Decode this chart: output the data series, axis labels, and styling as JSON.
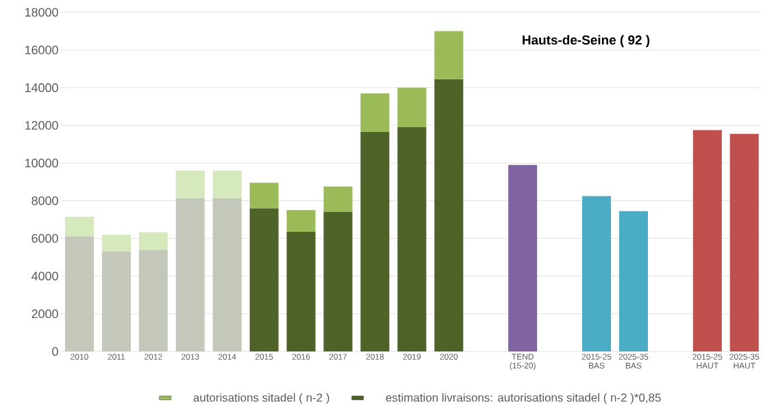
{
  "chart_data": {
    "type": "bar",
    "stacked": true,
    "title": "Hauts-de-Seine ( 92 )",
    "categories": [
      "2010",
      "2011",
      "2012",
      "2013",
      "2014",
      "2015",
      "2016",
      "2017",
      "2018",
      "2019",
      "2020",
      null,
      "TEND (15-20)",
      null,
      "2015-25 BAS",
      "2025-35 BAS",
      null,
      "2015-25 HAUT",
      "2025-35 HAUT"
    ],
    "series": [
      {
        "name": "estimation livraisons: autorisations sitadel ( n-2 )*0,85",
        "color": "#4f6228",
        "colors": [
          "#c3c8ba",
          "#c3c8ba",
          "#c3c8ba",
          "#c3c8ba",
          "#c3c8ba",
          "#4f6228",
          "#4f6228",
          "#4f6228",
          "#4f6228",
          "#4f6228",
          "#4f6228",
          null,
          null,
          null,
          null,
          null,
          null,
          null,
          null
        ],
        "values": [
          6100,
          5300,
          5400,
          8150,
          8150,
          7600,
          6350,
          7400,
          11650,
          11900,
          14450,
          null,
          null,
          null,
          null,
          null,
          null,
          null,
          null
        ]
      },
      {
        "name": "autorisations sitadel ( n-2 )",
        "color": "#9bbb59",
        "colors": [
          "#d6e9bd",
          "#d6e9bd",
          "#d6e9bd",
          "#d6e9bd",
          "#d6e9bd",
          "#9bbb59",
          "#9bbb59",
          "#9bbb59",
          "#9bbb59",
          "#9bbb59",
          "#9bbb59",
          null,
          null,
          null,
          null,
          null,
          null,
          null,
          null
        ],
        "values": [
          1050,
          900,
          930,
          1450,
          1450,
          1350,
          1150,
          1350,
          2050,
          2100,
          2550,
          null,
          null,
          null,
          null,
          null,
          null,
          null,
          null
        ]
      },
      {
        "colors": [
          null,
          null,
          null,
          null,
          null,
          null,
          null,
          null,
          null,
          null,
          null,
          null,
          "#8064a2",
          null,
          "#4bacc6",
          "#4bacc6",
          null,
          "#c0504d",
          "#c0504d"
        ],
        "values": [
          null,
          null,
          null,
          null,
          null,
          null,
          null,
          null,
          null,
          null,
          null,
          null,
          9900,
          null,
          8250,
          7450,
          null,
          11750,
          11550
        ]
      }
    ],
    "ylim": [
      0,
      18000
    ],
    "yticks": [
      0,
      2000,
      4000,
      6000,
      8000,
      10000,
      12000,
      14000,
      16000,
      18000
    ],
    "grid": "y",
    "legend": "bottom"
  }
}
